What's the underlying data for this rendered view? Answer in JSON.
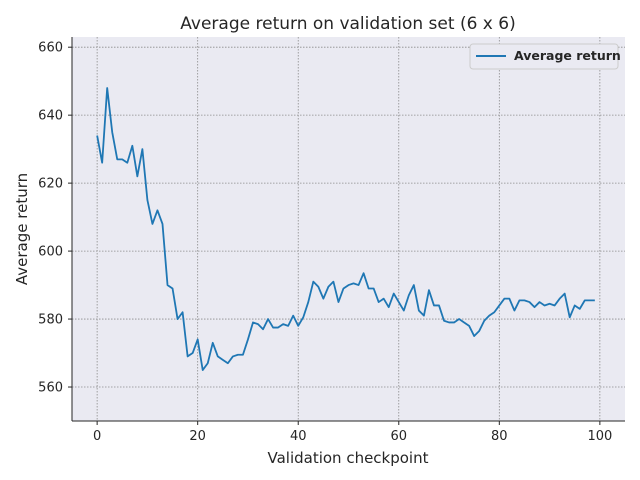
{
  "chart_data": {
    "type": "line",
    "title": "Average return on validation set (6 x 6)",
    "xlabel": "Validation checkpoint",
    "ylabel": "Average return",
    "xlim": [
      -5,
      105
    ],
    "ylim": [
      550,
      663
    ],
    "xticks": [
      0,
      20,
      40,
      60,
      80,
      100
    ],
    "yticks": [
      560,
      580,
      600,
      620,
      640,
      660
    ],
    "grid": true,
    "legend_position": "top-right",
    "colors": {
      "line": "#1f77b4",
      "plot_bg": "#eaeaf2",
      "grid": "#8c8c8c"
    },
    "series": [
      {
        "name": "Average return",
        "x": [
          0,
          1,
          2,
          3,
          4,
          5,
          6,
          7,
          8,
          9,
          10,
          11,
          12,
          13,
          14,
          15,
          16,
          17,
          18,
          19,
          20,
          21,
          22,
          23,
          24,
          25,
          26,
          27,
          28,
          29,
          30,
          31,
          32,
          33,
          34,
          35,
          36,
          37,
          38,
          39,
          40,
          41,
          42,
          43,
          44,
          45,
          46,
          47,
          48,
          49,
          50,
          51,
          52,
          53,
          54,
          55,
          56,
          57,
          58,
          59,
          60,
          61,
          62,
          63,
          64,
          65,
          66,
          67,
          68,
          69,
          70,
          71,
          72,
          73,
          74,
          75,
          76,
          77,
          78,
          79,
          80,
          81,
          82,
          83,
          84,
          85,
          86,
          87,
          88,
          89,
          90,
          91,
          92,
          93,
          94,
          95,
          96,
          97,
          98,
          99
        ],
        "y": [
          634,
          626,
          648,
          635,
          627,
          627,
          626,
          631,
          622,
          630,
          615,
          608,
          612,
          608,
          590,
          589,
          580,
          582,
          569,
          570,
          574,
          565,
          567,
          573,
          569,
          568,
          567,
          569,
          569.5,
          569.5,
          574,
          579,
          578.5,
          577,
          580,
          577.5,
          577.5,
          578.5,
          578,
          581,
          578,
          580.5,
          585,
          591,
          589.5,
          586,
          589.5,
          591,
          585,
          589,
          590,
          590.5,
          590,
          593.5,
          589,
          589,
          585,
          586,
          583.5,
          587.5,
          585,
          582.5,
          587,
          590,
          582.5,
          581,
          588.5,
          584,
          584,
          579.5,
          579,
          579,
          580,
          579,
          578,
          575,
          576.5,
          579.5,
          581,
          582,
          584,
          586,
          586,
          582.5,
          585.5,
          585.5,
          585,
          583.5,
          585,
          584,
          584.5,
          584,
          586,
          587.5,
          580.5,
          584,
          583,
          585.5,
          585.5,
          585.5
        ]
      }
    ]
  }
}
